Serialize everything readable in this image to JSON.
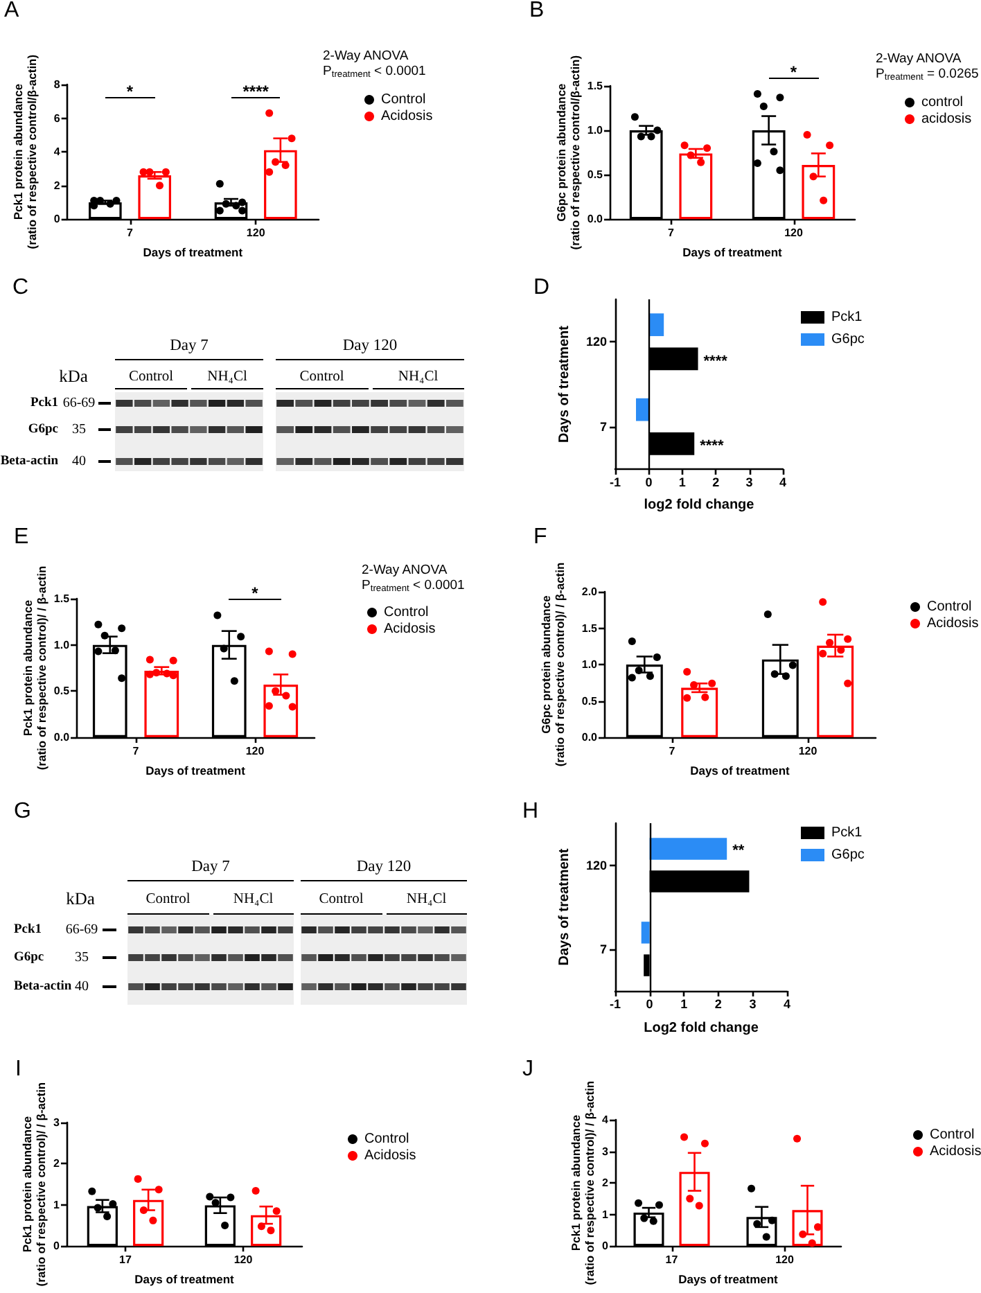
{
  "chart_data": [
    {
      "type": "bar",
      "title": "A",
      "categories": [
        "7",
        "120"
      ],
      "series": [
        {
          "name": "Control",
          "color": "#000000",
          "values": [
            1.0,
            1.0
          ],
          "errors": [
            0.1,
            0.2
          ]
        },
        {
          "name": "Acidosis",
          "color": "#ff0000",
          "values": [
            2.6,
            4.1
          ],
          "errors": [
            0.2,
            0.7
          ]
        },
        {
          "type": "scatter",
          "color": "#000000",
          "x": [
            "7",
            "7",
            "7",
            "7",
            "7",
            "120",
            "120",
            "120",
            "120",
            "120",
            "120"
          ],
          "values": [
            1.1,
            1.1,
            1.1,
            0.9,
            0.8,
            2.1,
            1.0,
            0.9,
            0.8,
            0.5,
            0.5
          ]
        },
        {
          "type": "scatter",
          "color": "#ff0000",
          "x": [
            "7",
            "7",
            "7",
            "7",
            "120",
            "120",
            "120",
            "120",
            "120"
          ],
          "values": [
            2.8,
            2.8,
            2.8,
            2.0,
            6.3,
            4.8,
            3.4,
            3.2,
            2.8
          ]
        }
      ],
      "xlabel": "Days of treatment",
      "ylabel": "Pck1 protein abundance\n(ratio of respective control/β-actin)",
      "ylim": [
        0,
        8
      ],
      "yticks": [
        0,
        2,
        4,
        6,
        8
      ],
      "legend": "right",
      "marker": "circle",
      "annotations": [
        "2-Way ANOVA",
        "P$_{treatment}$ < 0.0001",
        "*",
        "****"
      ]
    },
    {
      "type": "bar",
      "title": "B",
      "categories": [
        "7",
        "120"
      ],
      "series": [
        {
          "name": "control",
          "color": "#000000",
          "values": [
            1.0,
            1.0
          ],
          "errors": [
            0.05,
            0.16
          ]
        },
        {
          "name": "acidosis",
          "color": "#ff0000",
          "values": [
            0.74,
            0.61
          ],
          "errors": [
            0.05,
            0.13
          ]
        },
        {
          "type": "scatter",
          "color": "#000000",
          "x": [
            "7",
            "7",
            "7",
            "7",
            "120",
            "120",
            "120",
            "120",
            "120",
            "120"
          ],
          "values": [
            1.15,
            1.0,
            0.93,
            0.93,
            1.41,
            1.37,
            1.27,
            0.76,
            0.63,
            0.55
          ]
        },
        {
          "type": "scatter",
          "color": "#ff0000",
          "x": [
            "7",
            "7",
            "7",
            "7",
            "120",
            "120",
            "120",
            "120"
          ],
          "values": [
            0.83,
            0.8,
            0.72,
            0.64,
            0.95,
            0.83,
            0.48,
            0.21
          ]
        }
      ],
      "xlabel": "Days of treatment",
      "ylabel": "G6pc protein abundance\n(ratio of respective control/β-actin)",
      "ylim": [
        0,
        1.5
      ],
      "yticks": [
        {
          "value": 0,
          "label": "0.0"
        },
        0.5,
        {
          "value": 1,
          "label": "1.0"
        },
        1.5
      ],
      "legend": "right",
      "marker": "circle",
      "annotations": [
        "2-Way ANOVA",
        "P$_{treatment}$ = 0.0265",
        "*"
      ]
    },
    {
      "type": "other",
      "title": "C",
      "annotations": [
        "Day 7",
        "Day 120",
        "Control",
        "NH₄Cl",
        "Control",
        "NH₄Cl",
        "kDa",
        "Pck1",
        "66-69",
        "G6pc",
        "35",
        "Beta-actin",
        "40"
      ]
    },
    {
      "type": "bar",
      "title": "D",
      "orientation": "horizontal",
      "categories": [
        "120",
        "7"
      ],
      "series": [
        {
          "name": "Pck1",
          "color": "#000000",
          "values": [
            1.47,
            1.36
          ]
        },
        {
          "name": "G6pc",
          "color": "#2b8cf5",
          "values": [
            0.45,
            -0.38
          ]
        }
      ],
      "xlim": [
        -1,
        4
      ],
      "xticks": [
        -1,
        0,
        1,
        2,
        3,
        4
      ],
      "xlabel": "log2 fold change",
      "ylabel": "Days of treatment",
      "legend": "right",
      "ref_lines": [
        {
          "axis": "x",
          "value": 0,
          "color": "#000000"
        }
      ],
      "annotations": [
        {
          "text": "****",
          "x": 1.47,
          "y": "120"
        },
        {
          "text": "****",
          "x": 1.36,
          "y": "7"
        }
      ]
    },
    {
      "type": "bar",
      "title": "E",
      "categories": [
        "7",
        "120"
      ],
      "series": [
        {
          "name": "Control",
          "color": "#000000",
          "values": [
            1.0,
            1.0
          ],
          "errors": [
            0.09,
            0.15
          ]
        },
        {
          "name": "Acidosis",
          "color": "#ff0000",
          "values": [
            0.72,
            0.57
          ],
          "errors": [
            0.04,
            0.11
          ]
        },
        {
          "type": "scatter",
          "color": "#000000",
          "x": [
            "7",
            "7",
            "7",
            "7",
            "7",
            "7",
            "120",
            "120",
            "120",
            "120"
          ],
          "values": [
            1.22,
            1.18,
            1.1,
            0.94,
            0.93,
            0.64,
            1.32,
            1.09,
            0.96,
            0.61
          ]
        },
        {
          "type": "scatter",
          "color": "#ff0000",
          "x": [
            "7",
            "7",
            "7",
            "7",
            "7",
            "7",
            "120",
            "120",
            "120",
            "120",
            "120",
            "120"
          ],
          "values": [
            0.84,
            0.83,
            0.7,
            0.69,
            0.68,
            0.67,
            0.93,
            0.9,
            0.5,
            0.45,
            0.34,
            0.33
          ]
        }
      ],
      "xlabel": "Days of treatment",
      "ylabel": "Pck1 protein abundance\n(ratio of respective control)/ / β-actin",
      "ylim": [
        0,
        1.5
      ],
      "yticks": [
        {
          "value": 0,
          "label": "0.0"
        },
        0.5,
        {
          "value": 1,
          "label": "1.0"
        },
        1.5
      ],
      "legend": "right",
      "marker": "circle",
      "annotations": [
        "2-Way ANOVA",
        "P$_{treatment}$ < 0.0001",
        "*"
      ]
    },
    {
      "type": "bar",
      "title": "F",
      "categories": [
        "7",
        "120"
      ],
      "series": [
        {
          "name": "Control",
          "color": "#000000",
          "values": [
            1.0,
            1.07
          ],
          "errors": [
            0.11,
            0.2
          ]
        },
        {
          "name": "Acidosis",
          "color": "#ff0000",
          "values": [
            0.68,
            1.26
          ],
          "errors": [
            0.06,
            0.15
          ]
        },
        {
          "type": "scatter",
          "color": "#000000",
          "x": [
            "7",
            "7",
            "7",
            "7",
            "7",
            "120",
            "120",
            "120",
            "120"
          ],
          "values": [
            1.32,
            1.1,
            0.92,
            0.84,
            0.82,
            1.69,
            0.99,
            0.87,
            0.84
          ]
        },
        {
          "type": "scatter",
          "color": "#ff0000",
          "x": [
            "7",
            "7",
            "7",
            "7",
            "7",
            "120",
            "120",
            "120",
            "120",
            "120",
            "120"
          ],
          "values": [
            0.9,
            0.74,
            0.72,
            0.55,
            0.54,
            1.86,
            1.35,
            1.3,
            1.2,
            1.15,
            0.74
          ]
        }
      ],
      "xlabel": "Days of treatment",
      "ylabel": "G6pc protein abundance\n(ratio of respective control)/ / β-actin",
      "ylim": [
        0,
        2
      ],
      "yticks": [
        {
          "value": 0,
          "label": "0.0"
        },
        0.5,
        {
          "value": 1,
          "label": "1.0"
        },
        1.5,
        {
          "value": 2,
          "label": "2.0"
        }
      ],
      "legend": "right",
      "marker": "circle"
    },
    {
      "type": "other",
      "title": "G",
      "annotations": [
        "Day 7",
        "Day 120",
        "Control",
        "NH₄Cl",
        "Control",
        "NH₄Cl",
        "kDa",
        "Pck1",
        "66-69",
        "G6pc",
        "35",
        "Beta-actin",
        "40"
      ]
    },
    {
      "type": "bar",
      "title": "H",
      "orientation": "horizontal",
      "categories": [
        "120",
        "7"
      ],
      "series": [
        {
          "name": "Pck1",
          "color": "#000000",
          "values": [
            2.9,
            -0.17
          ]
        },
        {
          "name": "G6pc",
          "color": "#2b8cf5",
          "values": [
            2.25,
            -0.24
          ]
        }
      ],
      "xlim": [
        -1,
        4
      ],
      "xticks": [
        -1,
        0,
        1,
        2,
        3,
        4
      ],
      "xlabel": "Log2 fold change",
      "ylabel": "Days of treatment",
      "legend": "right",
      "ref_lines": [
        {
          "axis": "x",
          "value": 0,
          "color": "#000000"
        }
      ],
      "annotations": [
        {
          "text": "**",
          "x": 2.25,
          "y": "120"
        }
      ]
    },
    {
      "type": "bar",
      "title": "I",
      "categories": [
        "17",
        "120"
      ],
      "series": [
        {
          "name": "Control",
          "color": "#000000",
          "values": [
            0.97,
            0.99
          ],
          "errors": [
            0.15,
            0.19
          ]
        },
        {
          "name": "Acidosis",
          "color": "#ff0000",
          "values": [
            1.12,
            0.75
          ],
          "errors": [
            0.25,
            0.21
          ]
        },
        {
          "type": "scatter",
          "color": "#000000",
          "x": [
            "17",
            "17",
            "17",
            "17",
            "120",
            "120",
            "120",
            "120"
          ],
          "values": [
            1.33,
            1.02,
            0.93,
            0.72,
            1.2,
            1.18,
            1.05,
            0.5
          ]
        },
        {
          "type": "scatter",
          "color": "#ff0000",
          "x": [
            "17",
            "17",
            "17",
            "17",
            "120",
            "120",
            "120",
            "120"
          ],
          "values": [
            1.63,
            1.37,
            0.87,
            0.62,
            1.34,
            0.85,
            0.48,
            0.38
          ]
        }
      ],
      "xlabel": "Days of treatment",
      "ylabel": "Pck1 protein abundance\n(ratio of respective control)/ / β-actin",
      "ylim": [
        0,
        3
      ],
      "yticks": [
        0,
        1,
        2,
        3
      ],
      "legend": "right",
      "marker": "circle"
    },
    {
      "type": "bar",
      "title": "J",
      "categories": [
        "17",
        "120"
      ],
      "series": [
        {
          "name": "Control",
          "color": "#000000",
          "values": [
            1.06,
            0.92
          ],
          "errors": [
            0.15,
            0.32
          ]
        },
        {
          "name": "Acidosis",
          "color": "#ff0000",
          "values": [
            2.35,
            1.14
          ],
          "errors": [
            0.6,
            0.77
          ]
        },
        {
          "type": "scatter",
          "color": "#000000",
          "x": [
            "17",
            "17",
            "17",
            "17",
            "120",
            "120",
            "120",
            "120"
          ],
          "values": [
            1.36,
            1.3,
            0.88,
            0.79,
            1.82,
            0.81,
            0.7,
            0.29
          ]
        },
        {
          "type": "scatter",
          "color": "#ff0000",
          "x": [
            "17",
            "17",
            "17",
            "17",
            "120",
            "120",
            "120",
            "120"
          ],
          "values": [
            3.45,
            3.25,
            1.5,
            1.28,
            3.4,
            0.6,
            0.37,
            0.09
          ]
        }
      ],
      "xlabel": "Days of treatment",
      "ylabel": "Pck1 protein abundance\n(ratio of respective control)/ / β-actin",
      "ylim": [
        0,
        4
      ],
      "yticks": [
        0,
        1,
        2,
        3,
        4
      ],
      "legend": "right",
      "marker": "circle"
    }
  ]
}
